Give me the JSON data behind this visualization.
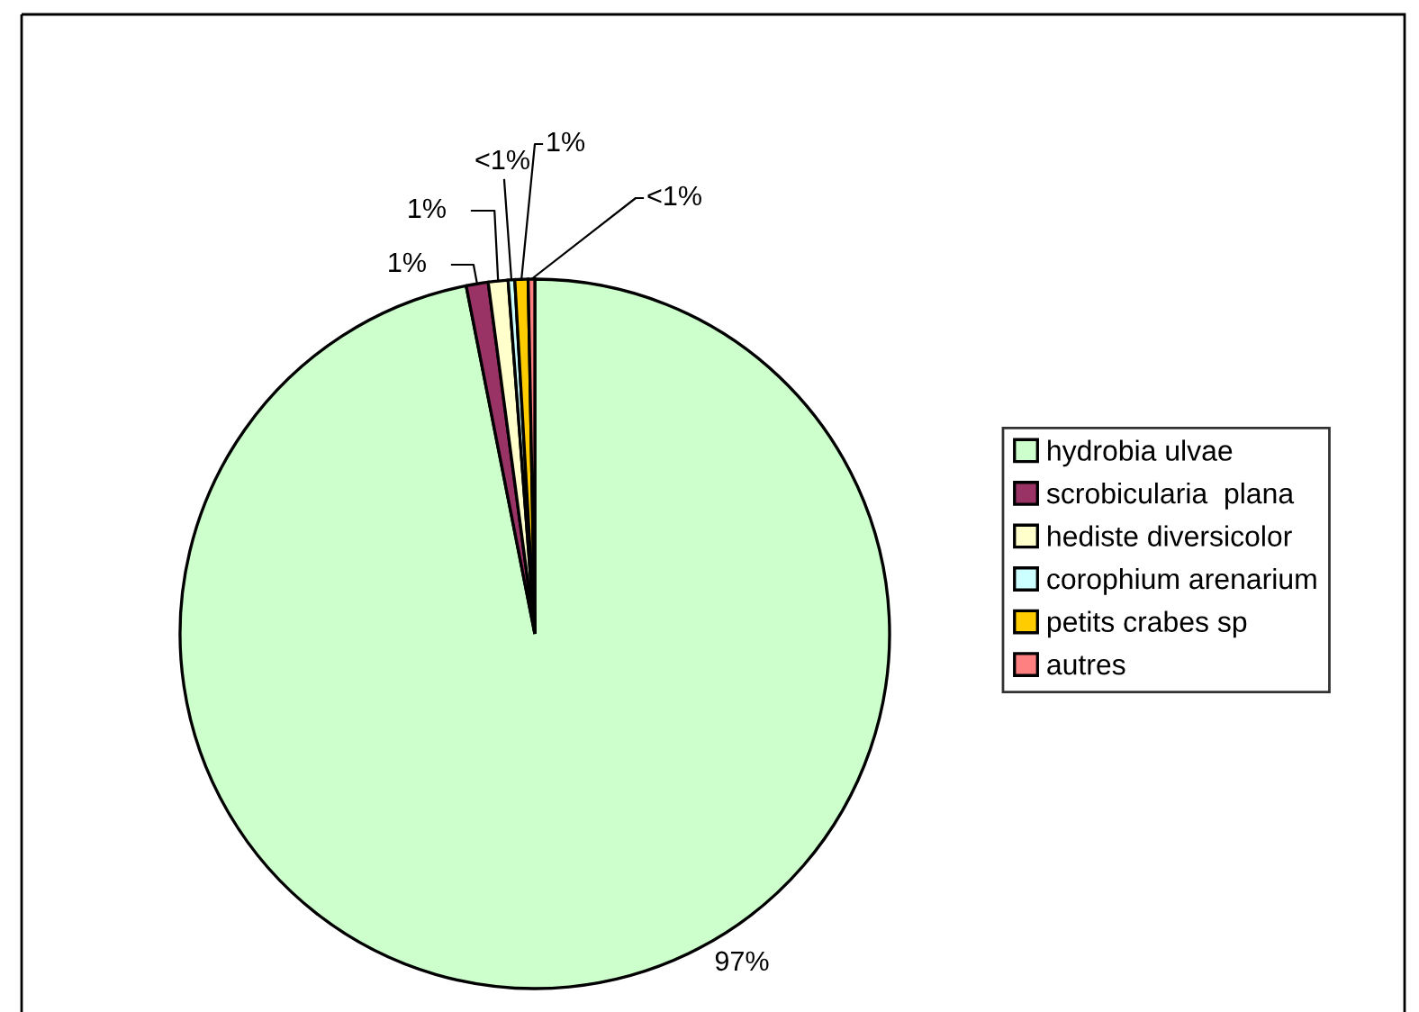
{
  "chart_data": {
    "type": "pie",
    "categories": [
      "hydrobia ulvae",
      "scrobicularia  plana",
      "hediste diversicolor",
      "corophium arenarium",
      "petits crabes sp",
      "autres"
    ],
    "values": [
      96.9,
      1.0,
      0.9,
      0.3,
      0.6,
      0.3
    ],
    "colors": [
      "#ccffcc",
      "#993366",
      "#ffffcc",
      "#ccffff",
      "#ffcc00",
      "#ff8080"
    ],
    "value_labels": [
      "97%",
      "1%",
      "1%",
      "<1%",
      "1%",
      "<1%"
    ],
    "legend": "right"
  }
}
